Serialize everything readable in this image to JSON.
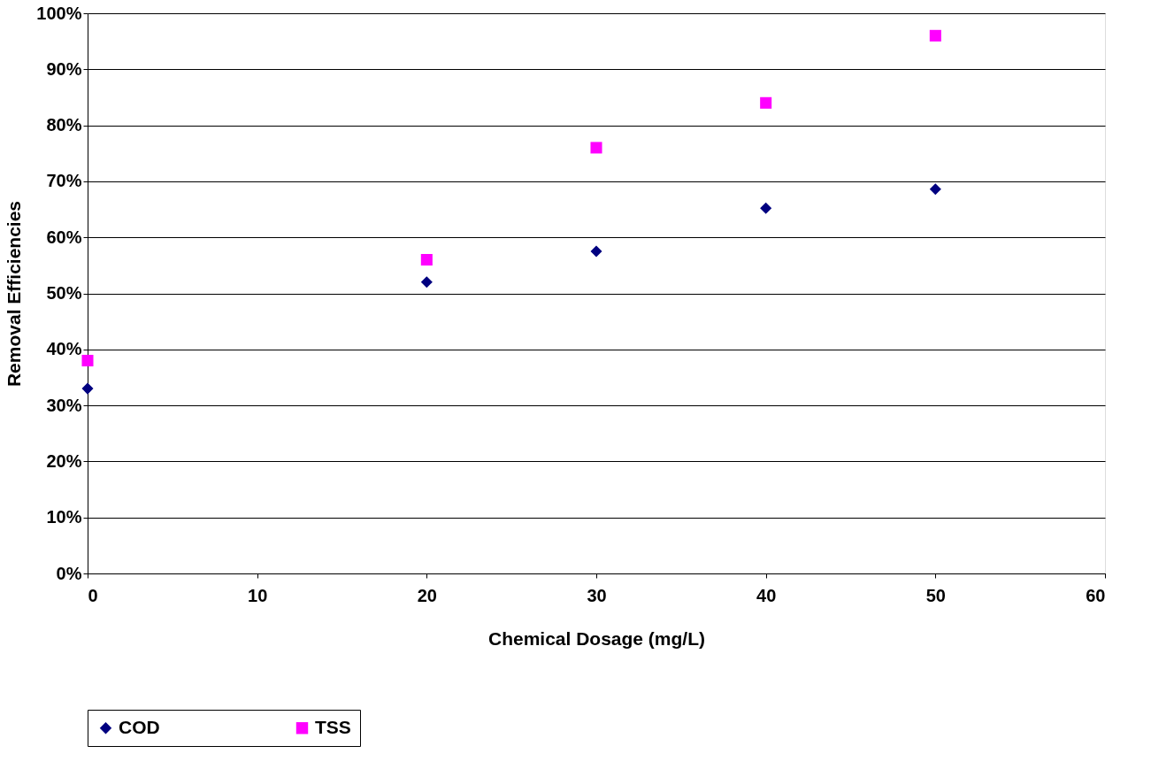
{
  "chart_data": {
    "type": "scatter",
    "xlabel": "Chemical Dosage (mg/L)",
    "ylabel": "Removal Efficiencies",
    "x": [
      0,
      20,
      30,
      40,
      50
    ],
    "series": [
      {
        "name": "COD",
        "color": "#000080",
        "marker": "diamond",
        "values": [
          33,
          52,
          57.5,
          65.2,
          68.6
        ]
      },
      {
        "name": "TSS",
        "color": "#ff00ff",
        "marker": "square",
        "values": [
          38,
          56,
          76,
          84,
          96
        ]
      }
    ],
    "xlim": [
      0,
      60
    ],
    "xticks": [
      0,
      10,
      20,
      30,
      40,
      50,
      60
    ],
    "ylim": [
      0,
      100
    ],
    "yticks": [
      {
        "value": 0,
        "label": "0%"
      },
      {
        "value": 10,
        "label": "10%"
      },
      {
        "value": 20,
        "label": "20%"
      },
      {
        "value": 30,
        "label": "30%"
      },
      {
        "value": 40,
        "label": "40%"
      },
      {
        "value": 50,
        "label": "50%"
      },
      {
        "value": 60,
        "label": "60%"
      },
      {
        "value": 70,
        "label": "70%"
      },
      {
        "value": 80,
        "label": "80%"
      },
      {
        "value": 90,
        "label": "90%"
      },
      {
        "value": 100,
        "label": "100%"
      }
    ],
    "grid": "y",
    "legend": "bottom"
  }
}
